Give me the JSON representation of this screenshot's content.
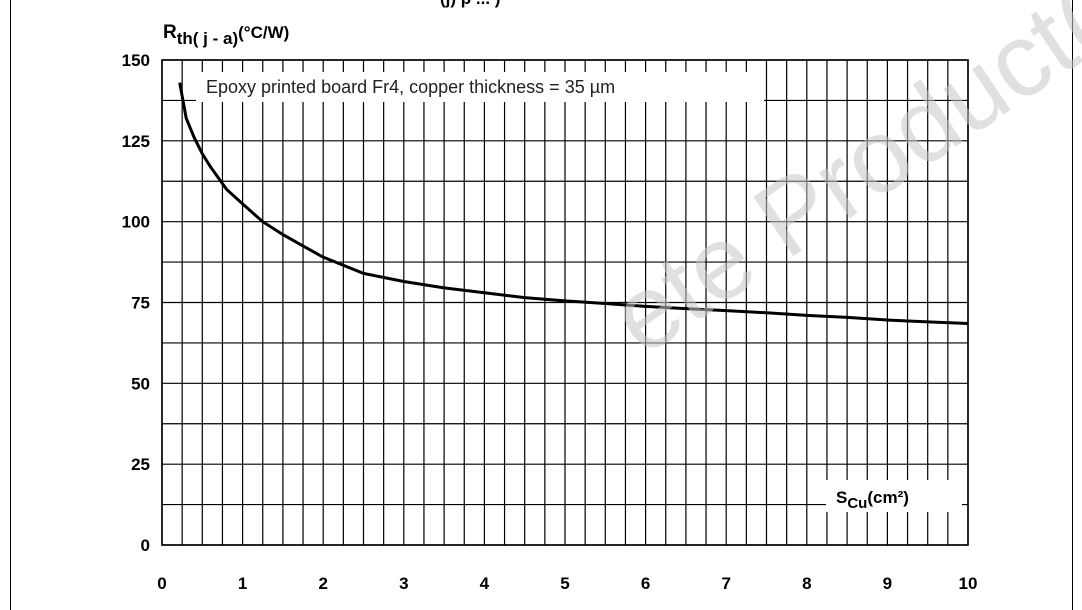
{
  "header": {
    "clipped_title": "(j) p     ...  )"
  },
  "chart_data": {
    "type": "line",
    "ylabel_main": "R",
    "ylabel_sub": "th( j - a)",
    "ylabel_unit": "(°C/W)",
    "xlabel_main": "S",
    "xlabel_sub": "Cu",
    "xlabel_unit": "(cm²)",
    "annotation": "Epoxy printed board Fr4, copper thickness  = 35 µm",
    "xlim": [
      0,
      10
    ],
    "ylim": [
      0,
      150
    ],
    "x_ticks": [
      0,
      1,
      2,
      3,
      4,
      5,
      6,
      7,
      8,
      9,
      10
    ],
    "y_ticks": [
      0,
      25,
      50,
      75,
      100,
      125,
      150
    ],
    "x_tick_labels": [
      "0",
      "1",
      "2",
      "3",
      "4",
      "5",
      "6",
      "7",
      "8",
      "9",
      "10"
    ],
    "y_tick_labels": [
      "0",
      "25",
      "50",
      "75",
      "100",
      "125",
      "150"
    ],
    "grid": true,
    "series": [
      {
        "x": [
          0.22,
          0.3,
          0.4,
          0.5,
          0.6,
          0.8,
          1.0,
          1.25,
          1.5,
          1.75,
          2.0,
          2.5,
          3.0,
          3.5,
          4.0,
          4.5,
          5.0,
          5.5,
          6.0,
          6.5,
          7.0,
          7.5,
          8.0,
          8.5,
          9.0,
          9.5,
          10.0
        ],
        "y": [
          143,
          132,
          126,
          121,
          117,
          110,
          105.5,
          100,
          96,
          92.5,
          89,
          84,
          81.5,
          79.5,
          78,
          76.5,
          75.5,
          74.7,
          73.8,
          73.1,
          72.5,
          71.8,
          71,
          70.4,
          69.6,
          69,
          68.5
        ]
      }
    ]
  },
  "watermark": "ete Product(s)"
}
